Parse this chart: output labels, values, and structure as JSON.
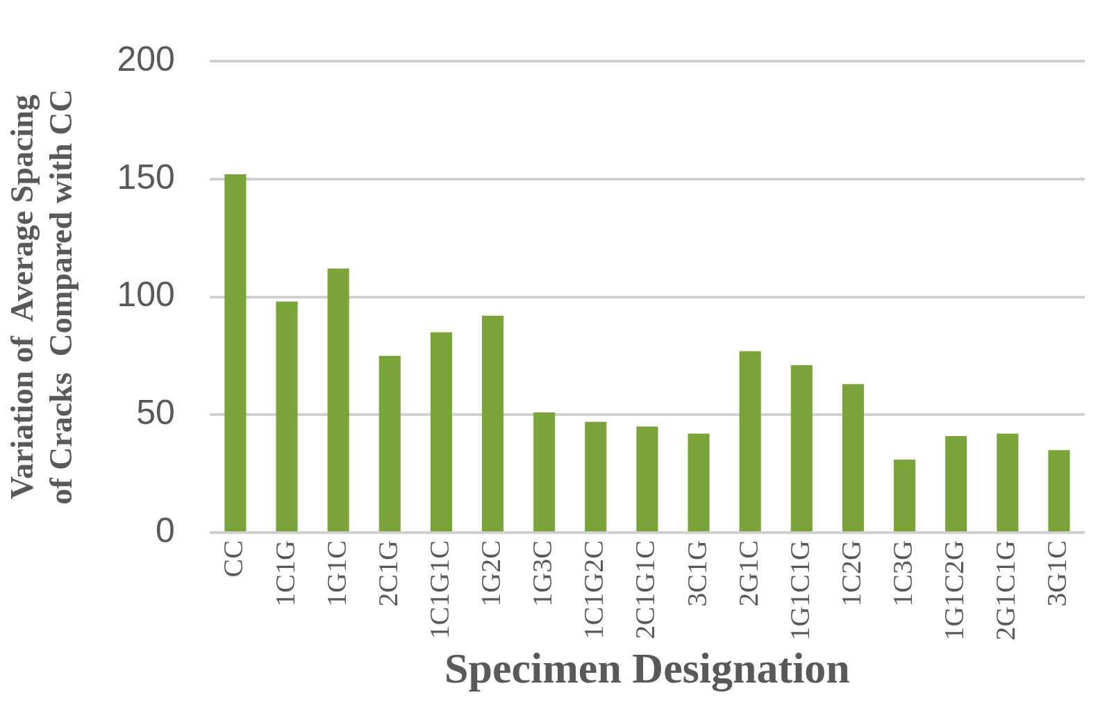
{
  "chart_data": {
    "type": "bar",
    "xlabel": "Specimen Designation",
    "ylabel": "Variation of  Average Spacing\nof Cracks  Compared with CC",
    "categories": [
      "CC",
      "1C1G",
      "1G1C",
      "2C1G",
      "1C1G1C",
      "1G2C",
      "1G3C",
      "1C1G2C",
      "2C1G1C",
      "3C1G",
      "2G1C",
      "1G1C1G",
      "1C2G",
      "1C3G",
      "1G1C2G",
      "2G1C1G",
      "3G1C"
    ],
    "values": [
      152,
      98,
      112,
      75,
      85,
      92,
      51,
      47,
      45,
      42,
      77,
      71,
      63,
      31,
      41,
      42,
      35
    ],
    "color": "#7aa33a",
    "ylim": [
      0,
      200
    ],
    "yticks": [
      0,
      50,
      100,
      150,
      200
    ],
    "grid": "y"
  }
}
